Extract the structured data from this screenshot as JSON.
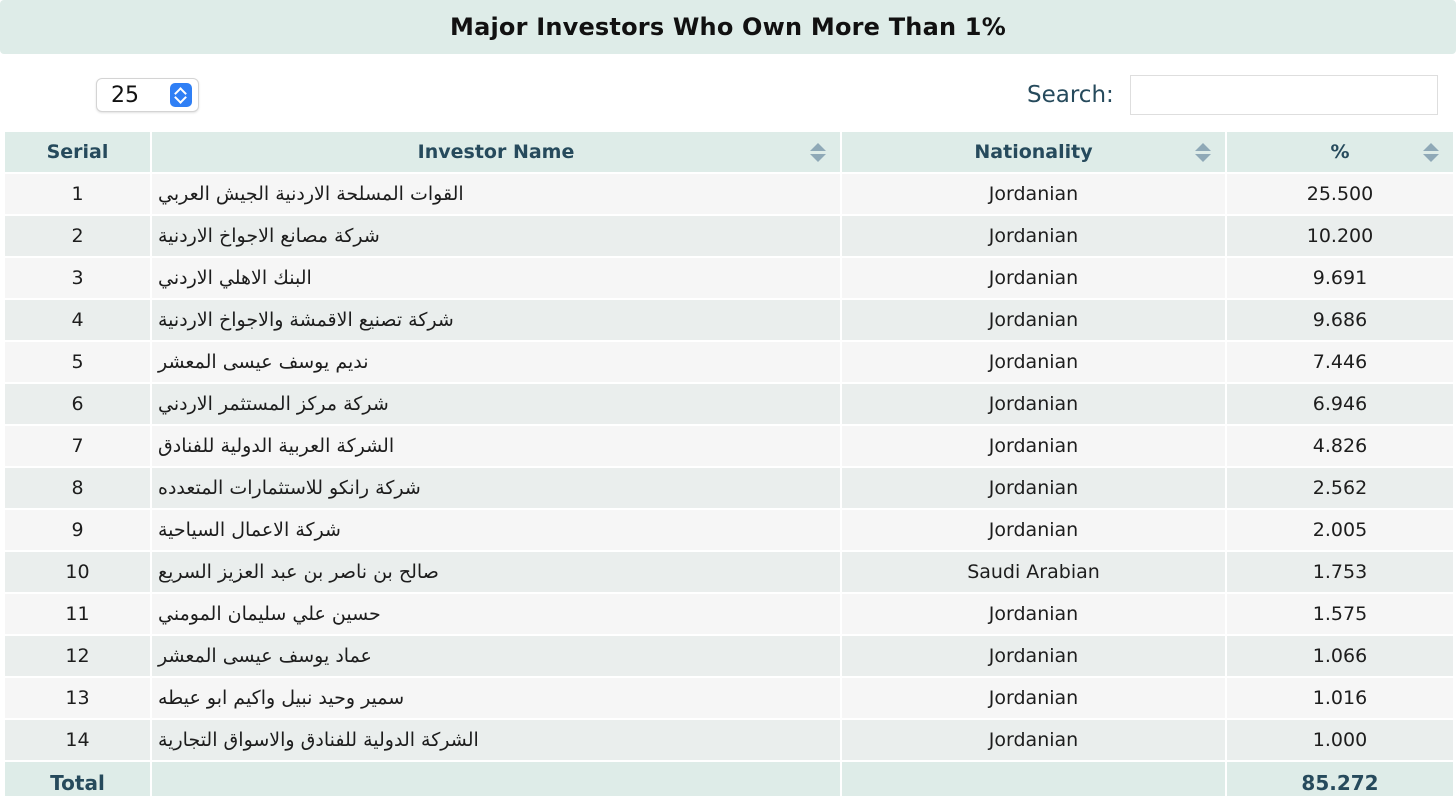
{
  "title": "Major Investors Who Own More Than 1%",
  "length_select": {
    "value": "25"
  },
  "search": {
    "label": "Search:",
    "value": "",
    "placeholder": ""
  },
  "table": {
    "columns": [
      "Serial",
      "Investor Name",
      "Nationality",
      "%"
    ],
    "rows": [
      {
        "serial": "1",
        "name": "القوات المسلحة الاردنية الجيش العربي",
        "nationality": "Jordanian",
        "pct": "25.500"
      },
      {
        "serial": "2",
        "name": "شركة مصانع الاجواخ الاردنية",
        "nationality": "Jordanian",
        "pct": "10.200"
      },
      {
        "serial": "3",
        "name": "البنك الاهلي الاردني",
        "nationality": "Jordanian",
        "pct": "9.691"
      },
      {
        "serial": "4",
        "name": "شركة تصنيع الاقمشة والاجواخ الاردنية",
        "nationality": "Jordanian",
        "pct": "9.686"
      },
      {
        "serial": "5",
        "name": "نديم يوسف عيسى المعشر",
        "nationality": "Jordanian",
        "pct": "7.446"
      },
      {
        "serial": "6",
        "name": "شركة مركز المستثمر الاردني",
        "nationality": "Jordanian",
        "pct": "6.946"
      },
      {
        "serial": "7",
        "name": "الشركة العربية الدولية للفنادق",
        "nationality": "Jordanian",
        "pct": "4.826"
      },
      {
        "serial": "8",
        "name": "شركة رانكو للاستثمارات المتعدده",
        "nationality": "Jordanian",
        "pct": "2.562"
      },
      {
        "serial": "9",
        "name": "شركة الاعمال السياحية",
        "nationality": "Jordanian",
        "pct": "2.005"
      },
      {
        "serial": "10",
        "name": "صالح بن ناصر بن عبد العزيز السريع",
        "nationality": "Saudi Arabian",
        "pct": "1.753"
      },
      {
        "serial": "11",
        "name": "حسين علي سليمان المومني",
        "nationality": "Jordanian",
        "pct": "1.575"
      },
      {
        "serial": "12",
        "name": "عماد يوسف عيسى المعشر",
        "nationality": "Jordanian",
        "pct": "1.066"
      },
      {
        "serial": "13",
        "name": "سمير وحيد نبيل واكيم ابو عيطه",
        "nationality": "Jordanian",
        "pct": "1.016"
      },
      {
        "serial": "14",
        "name": "الشركة الدولية للفنادق والاسواق التجارية",
        "nationality": "Jordanian",
        "pct": "1.000"
      }
    ],
    "footer": {
      "label": "Total",
      "total": "85.272"
    }
  },
  "colors": {
    "header_bg": "#deece8",
    "header_text": "#264a5c",
    "select_accent": "#2f7ff5",
    "row_odd": "#f6f6f6",
    "row_even": "#eaeeed"
  },
  "icons": {
    "sort": "sort-both-icon",
    "select": "chevron-updown-icon"
  }
}
